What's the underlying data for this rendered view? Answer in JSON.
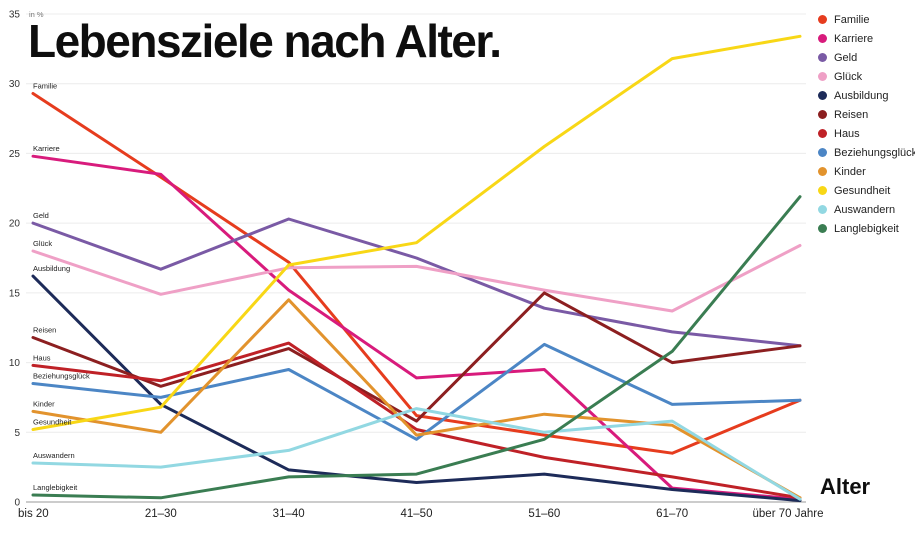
{
  "title": "Lebensziele nach Alter.",
  "chart_data": {
    "type": "line",
    "title": "Lebensziele nach Alter.",
    "unit_label": "in %",
    "xlabel": "Alter",
    "ylabel": "",
    "categories": [
      "bis 20",
      "21–30",
      "31–40",
      "41–50",
      "51–60",
      "61–70",
      "über 70 Jahre"
    ],
    "ylim": [
      0,
      35
    ],
    "yticks": [
      0,
      5,
      10,
      15,
      20,
      25,
      30,
      35
    ],
    "grid": true,
    "legend_position": "top-right",
    "series": [
      {
        "name": "Familie",
        "color": "#e63c1e",
        "values": [
          29.3,
          23.3,
          17.2,
          6.2,
          4.8,
          3.5,
          7.3
        ]
      },
      {
        "name": "Karriere",
        "color": "#d81b7c",
        "values": [
          24.8,
          23.5,
          15.2,
          8.9,
          9.5,
          1.0,
          0.2
        ]
      },
      {
        "name": "Geld",
        "color": "#7a5aa5",
        "values": [
          20.0,
          16.7,
          20.3,
          17.5,
          13.9,
          12.2,
          11.2
        ]
      },
      {
        "name": "Glück",
        "color": "#efa0c6",
        "values": [
          18.0,
          14.9,
          16.8,
          16.9,
          15.2,
          13.7,
          18.4
        ]
      },
      {
        "name": "Ausbildung",
        "color": "#1d2b59",
        "values": [
          16.2,
          7.0,
          2.3,
          1.4,
          2.0,
          0.9,
          0.1
        ]
      },
      {
        "name": "Reisen",
        "color": "#8c1f20",
        "values": [
          11.8,
          8.3,
          11.0,
          5.8,
          15.0,
          10.0,
          11.2
        ]
      },
      {
        "name": "Haus",
        "color": "#bf2127",
        "values": [
          9.8,
          8.7,
          11.4,
          5.2,
          3.2,
          1.8,
          0.3
        ]
      },
      {
        "name": "Beziehungsglück",
        "color": "#4c86c5",
        "values": [
          8.5,
          7.5,
          9.5,
          4.5,
          11.3,
          7.0,
          7.3
        ]
      },
      {
        "name": "Kinder",
        "color": "#e2932d",
        "values": [
          6.5,
          5.0,
          14.5,
          4.8,
          6.3,
          5.5,
          0.3
        ]
      },
      {
        "name": "Gesundheit",
        "color": "#f8d716",
        "values": [
          5.2,
          6.8,
          17.0,
          18.6,
          25.5,
          31.8,
          33.4
        ]
      },
      {
        "name": "Auswandern",
        "color": "#92d8e2",
        "values": [
          2.8,
          2.5,
          3.7,
          6.7,
          5.0,
          5.8,
          0.2
        ]
      },
      {
        "name": "Langlebigkeit",
        "color": "#3a7d52",
        "values": [
          0.5,
          0.3,
          1.8,
          2.0,
          4.5,
          10.8,
          21.9
        ]
      }
    ]
  }
}
